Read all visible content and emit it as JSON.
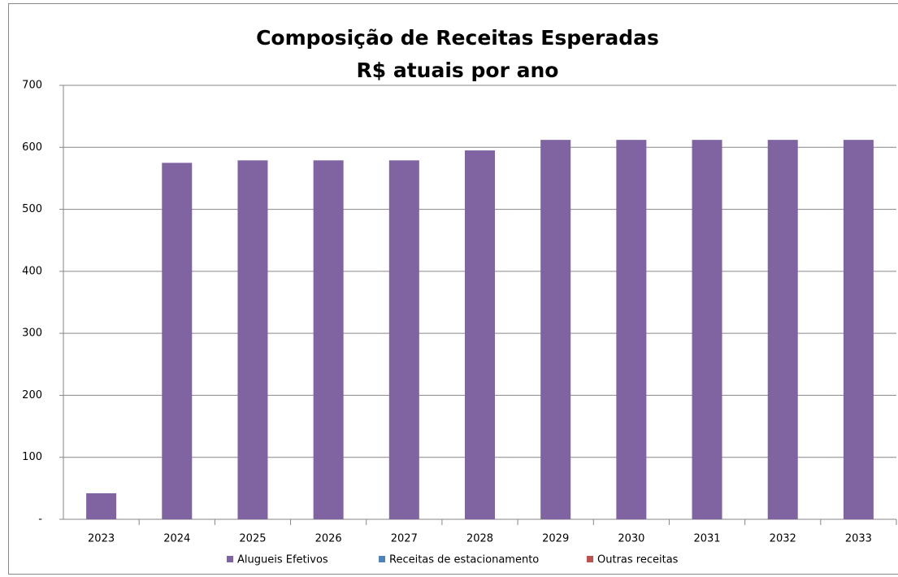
{
  "chart_data": {
    "type": "stacked_bar",
    "title": "Composição de Receitas Esperadas",
    "subtitle": "R$ atuais por ano",
    "categories": [
      "2023",
      "2024",
      "2025",
      "2026",
      "2027",
      "2028",
      "2029",
      "2030",
      "2031",
      "2032",
      "2033"
    ],
    "series": [
      {
        "name": "Alugueis Efetivos",
        "color": "#8064a2",
        "values": [
          42,
          575,
          579,
          579,
          579,
          595,
          612,
          612,
          612,
          612,
          612
        ]
      },
      {
        "name": "Receitas de estacionamento",
        "color": "#4f81bd",
        "values": [
          0,
          0,
          0,
          0,
          0,
          0,
          0,
          0,
          0,
          0,
          0
        ]
      },
      {
        "name": "Outras receitas",
        "color": "#c0504d",
        "values": [
          0,
          0,
          0,
          0,
          0,
          0,
          0,
          0,
          0,
          0,
          0
        ]
      }
    ],
    "ylim": [
      0,
      700
    ],
    "yticks": [
      {
        "value": 0,
        "label": "-"
      },
      100,
      200,
      300,
      400,
      500,
      600,
      700
    ],
    "grid": true,
    "legend": "bottom"
  }
}
